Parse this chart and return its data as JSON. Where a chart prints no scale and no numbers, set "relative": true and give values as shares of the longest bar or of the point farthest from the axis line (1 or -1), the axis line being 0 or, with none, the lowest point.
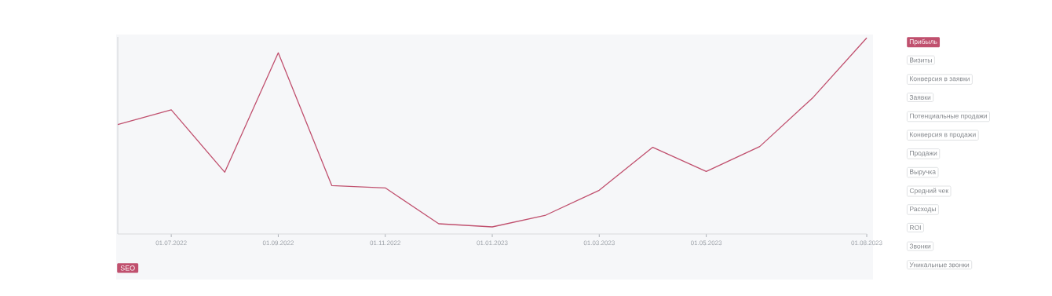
{
  "chart_data": {
    "type": "line",
    "title": "SEO",
    "relative": true,
    "categories": [
      null,
      "01.07.2022",
      null,
      "01.09.2022",
      null,
      "01.11.2022",
      null,
      "01.01.2023",
      null,
      "01.03.2023",
      null,
      "01.05.2023",
      null,
      null,
      "01.08.2023"
    ],
    "series": [
      {
        "name": "Прибыль",
        "color": "#c0506e",
        "values": [
          0.558,
          0.633,
          0.315,
          0.924,
          0.247,
          0.235,
          0.052,
          0.036,
          0.096,
          0.223,
          0.442,
          0.319,
          0.446,
          0.697,
          1
        ]
      }
    ],
    "legend": "right",
    "grid": false,
    "annotations": [
      "Визиты",
      "Конверсия в заявки",
      "Заявки",
      "Потенциальные продажи",
      "Конверсия в продажи",
      "Продажи",
      "Выручка",
      "Средний чек",
      "Расходы",
      "ROI",
      "Звонки",
      "Уникальные звонки"
    ]
  }
}
